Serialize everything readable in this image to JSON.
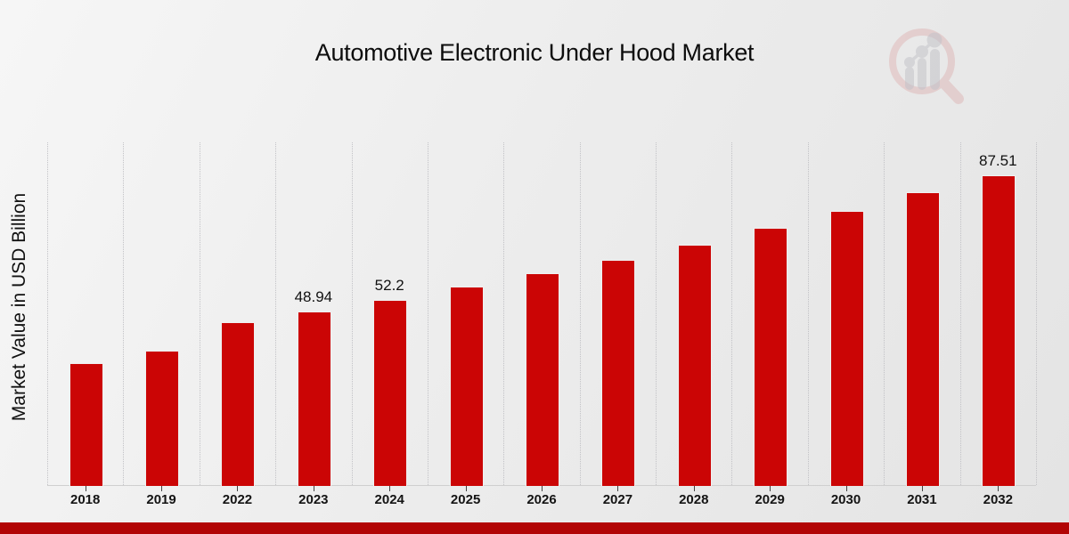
{
  "title": "Automotive Electronic Under Hood Market",
  "colors": {
    "bar": "#cb0505",
    "footer_strip": "#b20505",
    "background": "#ececec"
  },
  "icons": {
    "logo_watermark": "magnifier-bar-chart-logo"
  },
  "chart_data": {
    "type": "bar",
    "title": "Automotive Electronic Under Hood Market",
    "xlabel": "",
    "ylabel": "Market Value in USD Billion",
    "categories": [
      "2018",
      "2019",
      "2022",
      "2023",
      "2024",
      "2025",
      "2026",
      "2027",
      "2028",
      "2029",
      "2030",
      "2031",
      "2032"
    ],
    "values": [
      34.5,
      37.9,
      45.9,
      48.94,
      52.2,
      56.0,
      59.7,
      63.6,
      67.8,
      72.6,
      77.3,
      82.7,
      87.51
    ],
    "bar_labels": [
      null,
      null,
      null,
      "48.94",
      "52.2",
      null,
      null,
      null,
      null,
      null,
      null,
      null,
      "87.51"
    ],
    "ylim": [
      0,
      96.7
    ],
    "grid": "vertical-dotted",
    "legend": "none",
    "bar_color": "#cb0505"
  }
}
